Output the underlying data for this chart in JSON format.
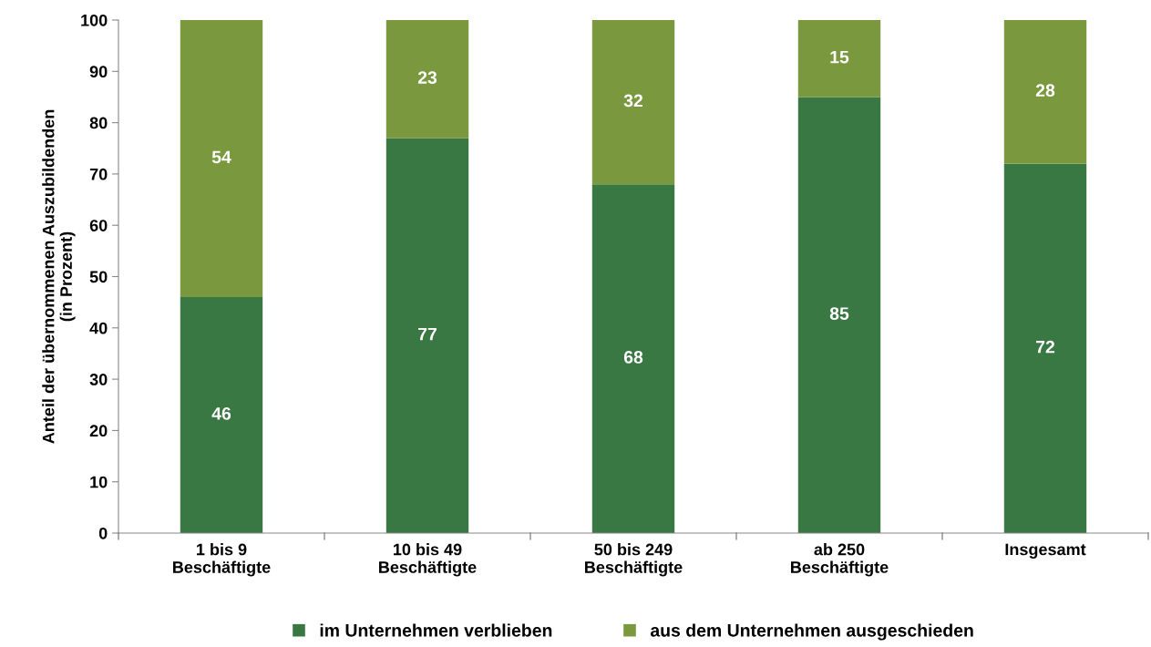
{
  "chart_data": {
    "type": "bar",
    "stacked": true,
    "ylabel": "Anteil der übernommenen Auszubildenden\n(in Prozent)",
    "categories": [
      "1 bis 9\nBeschäftigte",
      "10 bis 49\nBeschäftigte",
      "50 bis 249\nBeschäftigte",
      "ab 250\nBeschäftigte",
      "Insgesamt"
    ],
    "series": [
      {
        "name": "im Unternehmen verblieben",
        "color": "#3a7843",
        "values": [
          46,
          77,
          68,
          85,
          72
        ]
      },
      {
        "name": "aus dem Unternehmen ausgeschieden",
        "color": "#7a983e",
        "values": [
          54,
          23,
          32,
          15,
          28
        ]
      }
    ],
    "ylim": [
      0,
      100
    ],
    "yticks": [
      0,
      10,
      20,
      30,
      40,
      50,
      60,
      70,
      80,
      90,
      100
    ],
    "data_labels": true,
    "grid": false,
    "legend": "bottom"
  }
}
